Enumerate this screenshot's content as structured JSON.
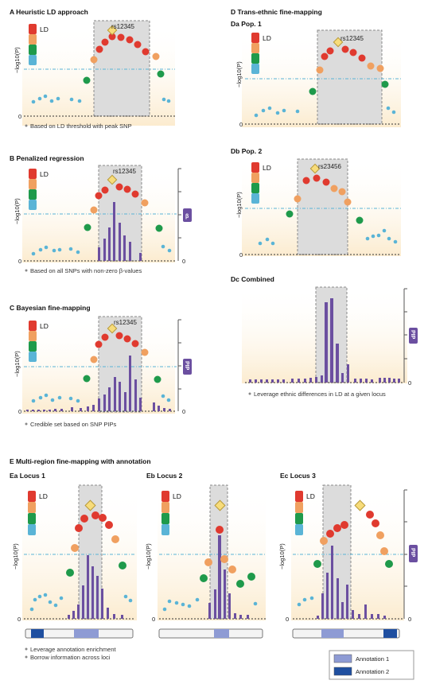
{
  "colors": {
    "ld_red": "#e03a2f",
    "ld_orange": "#f0a060",
    "ld_green": "#1f9a4b",
    "ld_blue": "#5ab4d6",
    "lead_snp": "#f7dc7a",
    "bar_purple": "#6b4fa0",
    "badge_purple": "#6b4fa0",
    "highlight_grey": "#d9d9d9",
    "threshold_line": "#5ab4d6",
    "annotation1": "#8e9bd4",
    "annotation2": "#1f4fa0"
  },
  "common": {
    "ld_label": "LD",
    "y_label": "−log10(P)",
    "zero": "0",
    "pip_label": "PIP",
    "beta_label": "β"
  },
  "panelA": {
    "title": "A  Heuristic LD approach",
    "snp": "rs12345",
    "caption": "Based on LD threshold with peak SNP"
  },
  "panelB": {
    "title": "B  Penalized regression",
    "snp": "rs12345",
    "caption": "Based on all SNPs with non-zero β-values"
  },
  "panelC": {
    "title": "C  Bayesian fine-mapping",
    "snp": "rs12345",
    "caption": "Credible set based on SNP PIPs"
  },
  "panelD": {
    "title": "D  Trans-ethnic fine-mapping",
    "da_title": "Da  Pop. 1",
    "da_snp": "rs12345",
    "db_title": "Db  Pop. 2",
    "db_snp": "rs23456",
    "dc_title": "Dc  Combined",
    "caption": "Leverage ethnic differences in LD at a given locus"
  },
  "panelE": {
    "title": "E  Multi-region fine-mapping with annotation",
    "ea_title": "Ea  Locus 1",
    "eb_title": "Eb  Locus 2",
    "ec_title": "Ec  Locus 3",
    "caption1": "Leverage annotation enrichment",
    "caption2": "Borrow information across loci",
    "legend": [
      "Annotation 1",
      "Annotation 2"
    ]
  }
}
